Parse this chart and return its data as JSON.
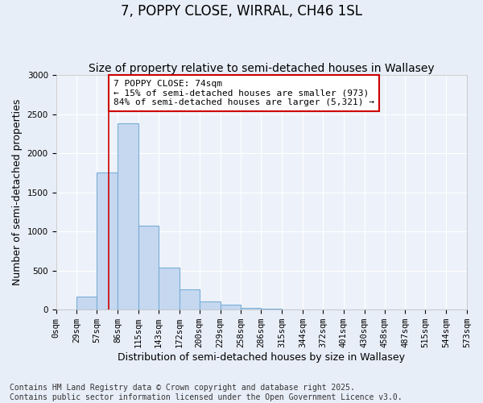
{
  "title": "7, POPPY CLOSE, WIRRAL, CH46 1SL",
  "subtitle": "Size of property relative to semi-detached houses in Wallasey",
  "xlabel": "Distribution of semi-detached houses by size in Wallasey",
  "ylabel": "Number of semi-detached properties",
  "bar_edges": [
    0,
    29,
    57,
    86,
    115,
    143,
    172,
    200,
    229,
    258,
    286,
    315,
    344,
    372,
    401,
    430,
    458,
    487,
    515,
    544,
    573
  ],
  "bar_heights": [
    0,
    170,
    1750,
    2380,
    1070,
    540,
    260,
    110,
    65,
    20,
    8,
    3,
    1,
    0,
    0,
    0,
    0,
    0,
    0,
    0
  ],
  "bar_color": "#c5d8f0",
  "bar_edge_color": "#7aaed6",
  "property_size": 74,
  "vline_color": "#cc0000",
  "annotation_text": "7 POPPY CLOSE: 74sqm\n← 15% of semi-detached houses are smaller (973)\n84% of semi-detached houses are larger (5,321) →",
  "annotation_box_color": "#cc0000",
  "annotation_bg": "#ffffff",
  "ylim": [
    0,
    3000
  ],
  "xlim": [
    0,
    573
  ],
  "yticks": [
    0,
    500,
    1000,
    1500,
    2000,
    2500,
    3000
  ],
  "xtick_labels": [
    "0sqm",
    "29sqm",
    "57sqm",
    "86sqm",
    "115sqm",
    "143sqm",
    "172sqm",
    "200sqm",
    "229sqm",
    "258sqm",
    "286sqm",
    "315sqm",
    "344sqm",
    "372sqm",
    "401sqm",
    "430sqm",
    "458sqm",
    "487sqm",
    "515sqm",
    "544sqm",
    "573sqm"
  ],
  "xtick_positions": [
    0,
    29,
    57,
    86,
    115,
    143,
    172,
    200,
    229,
    258,
    286,
    315,
    344,
    372,
    401,
    430,
    458,
    487,
    515,
    544,
    573
  ],
  "footer_text": "Contains HM Land Registry data © Crown copyright and database right 2025.\nContains public sector information licensed under the Open Government Licence v3.0.",
  "background_color": "#e8eef8",
  "plot_bg_color": "#edf2fa",
  "grid_color": "#ffffff",
  "title_fontsize": 12,
  "subtitle_fontsize": 10,
  "axis_label_fontsize": 9,
  "tick_fontsize": 7.5,
  "footer_fontsize": 7,
  "ann_fontsize": 8
}
